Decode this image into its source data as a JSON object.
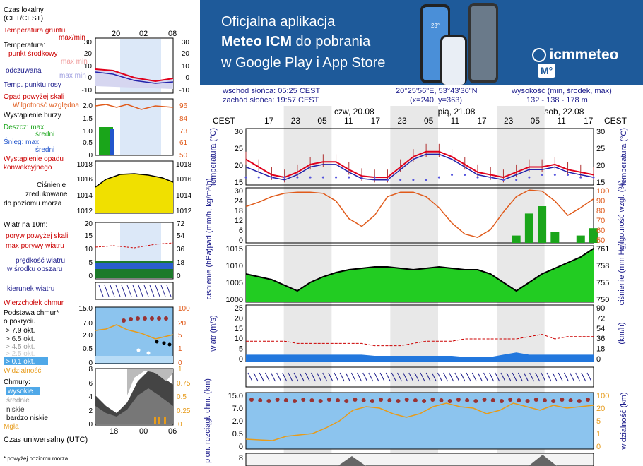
{
  "banner": {
    "line1": "Oficjalna aplikacja",
    "line2_bold": "Meteo ICM",
    "line2_rest": " do pobrania",
    "line3": "w Google Play i App Store",
    "logo_text": "icmmeteo",
    "logo_badge": "M°",
    "phone_temp": "23°"
  },
  "legend": {
    "time_zone": [
      "Czas lokalny",
      "(CET/CEST)"
    ],
    "top_hours": [
      "20",
      "02",
      "08"
    ],
    "ground_temp": [
      "Temperatura gruntu",
      "max/min"
    ],
    "temperature": [
      "Temperatura:",
      "punkt środkowy",
      "max min",
      "odczuwana",
      "max min",
      "Temp. punktu rosy"
    ],
    "temp_ticks": [
      "30",
      "20",
      "10",
      "0",
      "-10"
    ],
    "precip": [
      "Opad powyżej skali",
      "Wilgotność względna",
      "Wystąpienie burzy",
      "Deszcz: max",
      "średni",
      "Śnieg: max",
      "średni",
      "Wystąpienie opadu",
      "konwekcyjnego"
    ],
    "precip_ticks_left": [
      "2.0",
      "1.5",
      "1.0",
      "0.5",
      "0"
    ],
    "precip_ticks_right": [
      "96",
      "84",
      "73",
      "61",
      "50"
    ],
    "pressure": [
      "Ciśnienie",
      "zredukowane",
      "do poziomu morza"
    ],
    "pressure_ticks_left": [
      "1018",
      "1016",
      "1014",
      "1012"
    ],
    "pressure_ticks_right": [
      "1018",
      "1016",
      "1014",
      "1012"
    ],
    "wind": [
      "Wiatr na 10m:",
      "poryw powyżej skali",
      "max porywy wiatru",
      "prędkość wiatru",
      "w środku obszaru"
    ],
    "wind_ticks_left": [
      "20",
      "15",
      "10",
      "5",
      "0"
    ],
    "wind_ticks_right": [
      "72",
      "54",
      "36",
      "18",
      "0"
    ],
    "wind_dir": "kierunek wiatru",
    "cloud": [
      "Wierzchołek chmur",
      "Podstawa chmur*",
      "o pokryciu",
      "> 7.9 okt.",
      "> 6.5 okt.",
      "> 4.5 okt.",
      "> 2.5 okt.",
      "> 0.1 okt.",
      "Widzialność"
    ],
    "cloud_ticks_left": [
      "15.0",
      "7.0",
      "2.0",
      "0.5",
      "0"
    ],
    "cloud_ticks_right": [
      "100",
      "20",
      "5",
      "1",
      "0"
    ],
    "clouds": [
      "Chmury:",
      "wysokie",
      "średnie",
      "niskie",
      "bardzo niskie",
      "Mgła"
    ],
    "clouds_ticks_left": [
      "8",
      "6",
      "4",
      "2",
      "0"
    ],
    "clouds_ticks_right": [
      "1",
      "0.75",
      "0.5",
      "0.25",
      "0"
    ],
    "bottom_hours": [
      "18",
      "00",
      "06"
    ],
    "utc": "Czas uniwersalny (UTC)",
    "footnote": "* powyżej poziomu morza"
  },
  "info": {
    "sunrise": "wschód słońca: 05:25 CEST",
    "sunset": "zachód słońca: 19:57 CEST",
    "coords": "20°25'56\"E, 53°43'36\"N",
    "grid": "(x=240,  y=363)",
    "height_label": "wysokość (min, środek, max)",
    "height_values": "132 - 138 - 178 m"
  },
  "chart_data": {
    "type": "line",
    "timezone_label": "CEST",
    "days": [
      "czw, 20.08",
      "pią, 21.08",
      "sob, 22.08"
    ],
    "hours": [
      "17",
      "23",
      "05",
      "11",
      "17",
      "23",
      "05",
      "11",
      "17",
      "23",
      "05",
      "11",
      "17"
    ],
    "temperature": {
      "ylabel": "temperatura (°C)",
      "yticks": [
        "30",
        "25",
        "20",
        "15"
      ],
      "series": [
        {
          "name": "punkt środkowy",
          "values": [
            22,
            19,
            16,
            15,
            17,
            20,
            21,
            21,
            18,
            15.5,
            15,
            15,
            19,
            23,
            25,
            25,
            23,
            20,
            17,
            16,
            15,
            17,
            19,
            19,
            20,
            18,
            17,
            16
          ]
        },
        {
          "name": "odczuwana",
          "values": [
            19,
            17,
            15,
            14,
            16,
            19,
            20,
            20,
            17,
            14.5,
            14,
            14,
            18,
            22,
            24,
            24,
            22,
            19,
            16,
            15,
            14,
            16,
            18,
            18,
            19,
            17,
            16,
            15
          ]
        },
        {
          "name": "Temp. punktu rosy",
          "values": [
            15,
            15,
            15,
            15,
            15,
            15,
            15,
            15,
            15,
            15,
            15,
            14,
            14,
            14,
            14,
            15,
            16,
            16,
            15,
            15,
            14,
            14,
            15,
            16,
            16,
            16,
            15,
            15
          ]
        }
      ]
    },
    "precipitation": {
      "ylabel": "opad (mm/h, kg/m²/h)",
      "y2label": "wilgotność wzgl. (%)",
      "yticks": [
        "30",
        "24",
        "18",
        "12",
        "6",
        "0"
      ],
      "y2ticks": [
        "100",
        "90",
        "80",
        "70",
        "60",
        "50"
      ],
      "humidity": [
        83,
        87,
        92,
        95,
        96,
        96,
        95,
        88,
        72,
        65,
        75,
        92,
        96,
        96,
        92,
        82,
        68,
        58,
        55,
        62,
        78,
        92,
        98,
        97,
        88,
        75,
        82,
        90
      ],
      "rain": [
        0,
        0,
        0,
        0,
        0,
        0,
        0,
        0,
        0,
        0,
        0,
        0,
        0,
        0,
        0,
        0,
        0,
        0,
        0,
        0,
        0,
        4,
        16,
        20,
        6,
        0,
        4,
        8
      ]
    },
    "pressure": {
      "ylabel": "ciśnienie (hPa)",
      "y2label": "ciśnienie (mm Hg)",
      "yticks": [
        "1015",
        "1010",
        "1005",
        "1000"
      ],
      "y2ticks": [
        "761",
        "758",
        "755",
        "750"
      ],
      "values": [
        1006,
        1005,
        1004,
        1002,
        1000,
        1003,
        1005,
        1006.5,
        1007.5,
        1008,
        1008.5,
        1008.5,
        1008,
        1007.5,
        1008,
        1008.5,
        1008,
        1007.5,
        1007.5,
        1006,
        1003,
        1000,
        1003,
        1006,
        1008,
        1010,
        1012,
        1015
      ]
    },
    "wind": {
      "ylabel": "wiatr (m/s)",
      "y2label": "(km/h)",
      "yticks": [
        "25",
        "20",
        "15",
        "10",
        "5",
        "0"
      ],
      "y2ticks": [
        "90",
        "72",
        "54",
        "36",
        "18",
        "0"
      ],
      "speed": [
        3,
        3,
        3,
        3,
        3,
        3,
        3,
        3,
        3,
        3,
        2.5,
        2.5,
        2.5,
        2.5,
        2.5,
        2.5,
        2.5,
        2,
        2,
        2,
        3,
        4,
        3,
        3,
        3,
        3,
        3,
        3
      ],
      "gusts": [
        9,
        9,
        9,
        9,
        8,
        8,
        8,
        8,
        8,
        8,
        7,
        7,
        7,
        8,
        9,
        9,
        9,
        10,
        10,
        10,
        10,
        10,
        11,
        12,
        10,
        11,
        11,
        11
      ]
    },
    "clouds": {
      "ylabel": "pion. rozciągł. chm. (km)",
      "y2label": "widzialność (km)",
      "yticks": [
        "15.0",
        "7.0",
        "2.0",
        "0.5",
        "0"
      ],
      "y2ticks": [
        "100",
        "20",
        "5",
        "1",
        "0"
      ]
    },
    "cloud_cover": {
      "yticks": [
        "8"
      ]
    }
  },
  "colors": {
    "banner": "#1e5a9a",
    "navy": "#1d1d8c",
    "red": "#cc0000",
    "temperature": "#e0001b",
    "feels_like": "#2222aa",
    "dew": "#5555dd",
    "humidity": "#e05a1a",
    "rain": "#1aa51a",
    "pressure_fill": "#22cc22",
    "wind_fill": "#2277dd",
    "cloud_bg": "#8cc4ee",
    "visibility": "#e79b1a"
  }
}
